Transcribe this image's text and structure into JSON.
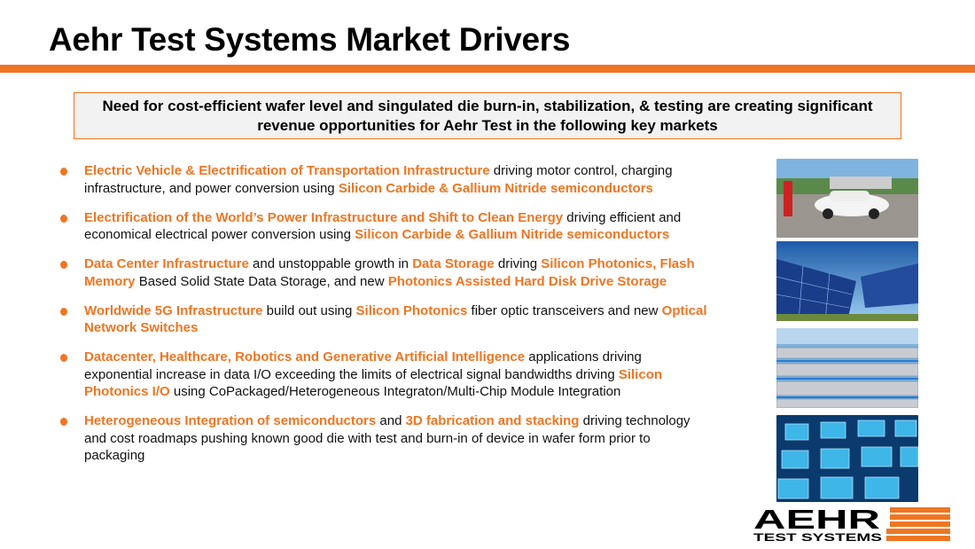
{
  "title": "Aehr Test Systems Market Drivers",
  "callout": "Need for cost-efficient wafer level and singulated die burn-in, stabilization, & testing are creating significant revenue opportunities for Aehr Test in the following key markets",
  "colors": {
    "accent": "#ee7623",
    "text": "#111111"
  },
  "bullets": [
    [
      {
        "t": "Electric Vehicle & Electrification of Transportation Infrastructure",
        "h": true
      },
      {
        "t": " driving motor control, charging infrastructure, and power conversion using ",
        "h": false
      },
      {
        "t": "Silicon Carbide & Gallium Nitride semiconductors",
        "h": true
      }
    ],
    [
      {
        "t": "Electrification of the World’s Power Infrastructure and Shift to Clean Energy",
        "h": true
      },
      {
        "t": " driving efficient and economical electrical power conversion using ",
        "h": false
      },
      {
        "t": "Silicon Carbide & Gallium Nitride semiconductors",
        "h": true
      }
    ],
    [
      {
        "t": "Data Center Infrastructure",
        "h": true
      },
      {
        "t": " and unstoppable growth in ",
        "h": false
      },
      {
        "t": "Data Storage",
        "h": true
      },
      {
        "t": " driving ",
        "h": false
      },
      {
        "t": "Silicon Photonics, Flash Memory",
        "h": true
      },
      {
        "t": " Based Solid State Data Storage, and new ",
        "h": false
      },
      {
        "t": "Photonics Assisted Hard Disk Drive Storage",
        "h": true
      }
    ],
    [
      {
        "t": "Worldwide 5G Infrastructure",
        "h": true
      },
      {
        "t": " build out using ",
        "h": false
      },
      {
        "t": "Silicon Photonics",
        "h": true
      },
      {
        "t": " fiber optic transceivers and new ",
        "h": false
      },
      {
        "t": "Optical Network Switches",
        "h": true
      }
    ],
    [
      {
        "t": "Datacenter, Healthcare, Robotics and Generative Artificial Intelligence",
        "h": true
      },
      {
        "t": " applications driving exponential increase in data I/O exceeding the limits of electrical signal bandwidths driving ",
        "h": false
      },
      {
        "t": "Silicon Photonics I/O",
        "h": true
      },
      {
        "t": " using CoPackaged/Heterogeneous Integraton/Multi-Chip Module Integration",
        "h": false
      }
    ],
    [
      {
        "t": "Heterogeneous Integration of semiconductors",
        "h": true
      },
      {
        "t": " and ",
        "h": false
      },
      {
        "t": "3D fabrication and stacking",
        "h": true
      },
      {
        "t": " driving technology and cost roadmaps pushing known good die with test and burn-in of device in wafer form prior to packaging",
        "h": false
      }
    ]
  ],
  "images": [
    "ev-charging-photo",
    "solar-panels-photo",
    "data-center-photo",
    "chip-array-photo"
  ],
  "logo": {
    "line1": "AEHR",
    "line2": "TEST SYSTEMS"
  }
}
